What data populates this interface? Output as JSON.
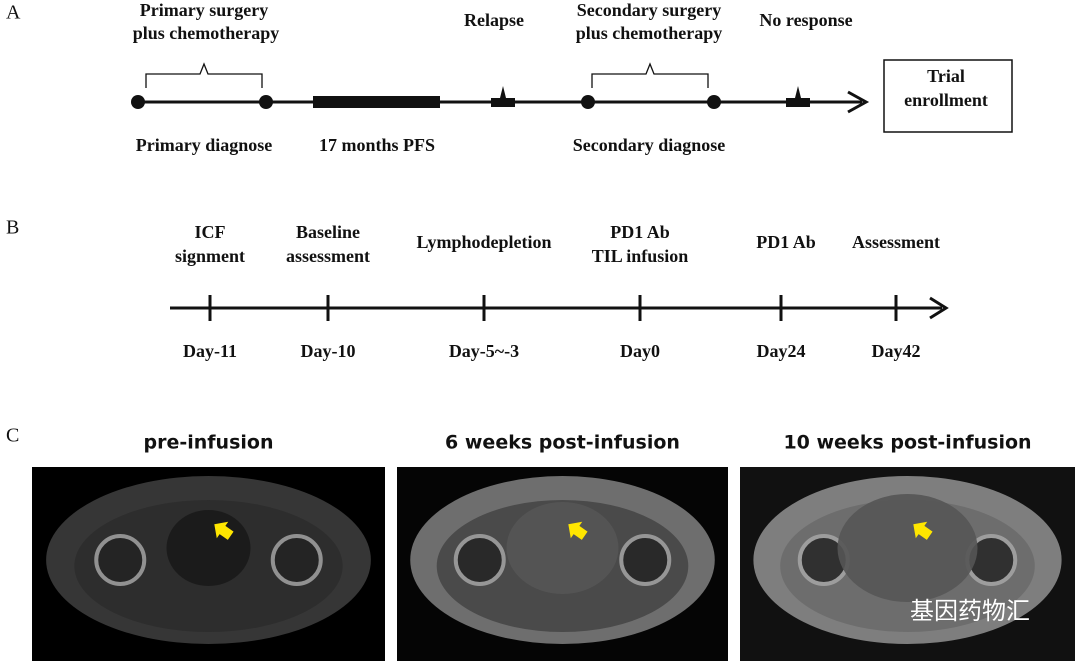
{
  "panel_a": {
    "label": "A",
    "top_labels": [
      [
        "Primary surgery",
        "plus chemotherapy"
      ],
      [
        "Relapse"
      ],
      [
        "Secondary surgery",
        "plus chemotherapy"
      ],
      [
        "No response"
      ]
    ],
    "bottom_labels": [
      "Primary diagnose",
      "17 months PFS",
      "Secondary diagnose"
    ],
    "box": [
      "Trial",
      "enrollment"
    ]
  },
  "panel_b": {
    "label": "B",
    "events": [
      {
        "top": [
          "ICF",
          "signment"
        ],
        "day": "Day-11"
      },
      {
        "top": [
          "Baseline",
          "assessment"
        ],
        "day": "Day-10"
      },
      {
        "top": [
          "Lymphodepletion"
        ],
        "day": "Day-5~-3"
      },
      {
        "top": [
          "PD1 Ab",
          "TIL infusion"
        ],
        "day": "Day0"
      },
      {
        "top": [
          "PD1 Ab"
        ],
        "day": "Day24"
      },
      {
        "top": [
          "Assessment"
        ],
        "day": "Day42"
      }
    ]
  },
  "panel_c": {
    "label": "C",
    "images": [
      {
        "title": "pre-infusion"
      },
      {
        "title": "6 weeks post-infusion"
      },
      {
        "title": "10 weeks post-infusion"
      }
    ]
  },
  "watermark": "基因药物汇"
}
